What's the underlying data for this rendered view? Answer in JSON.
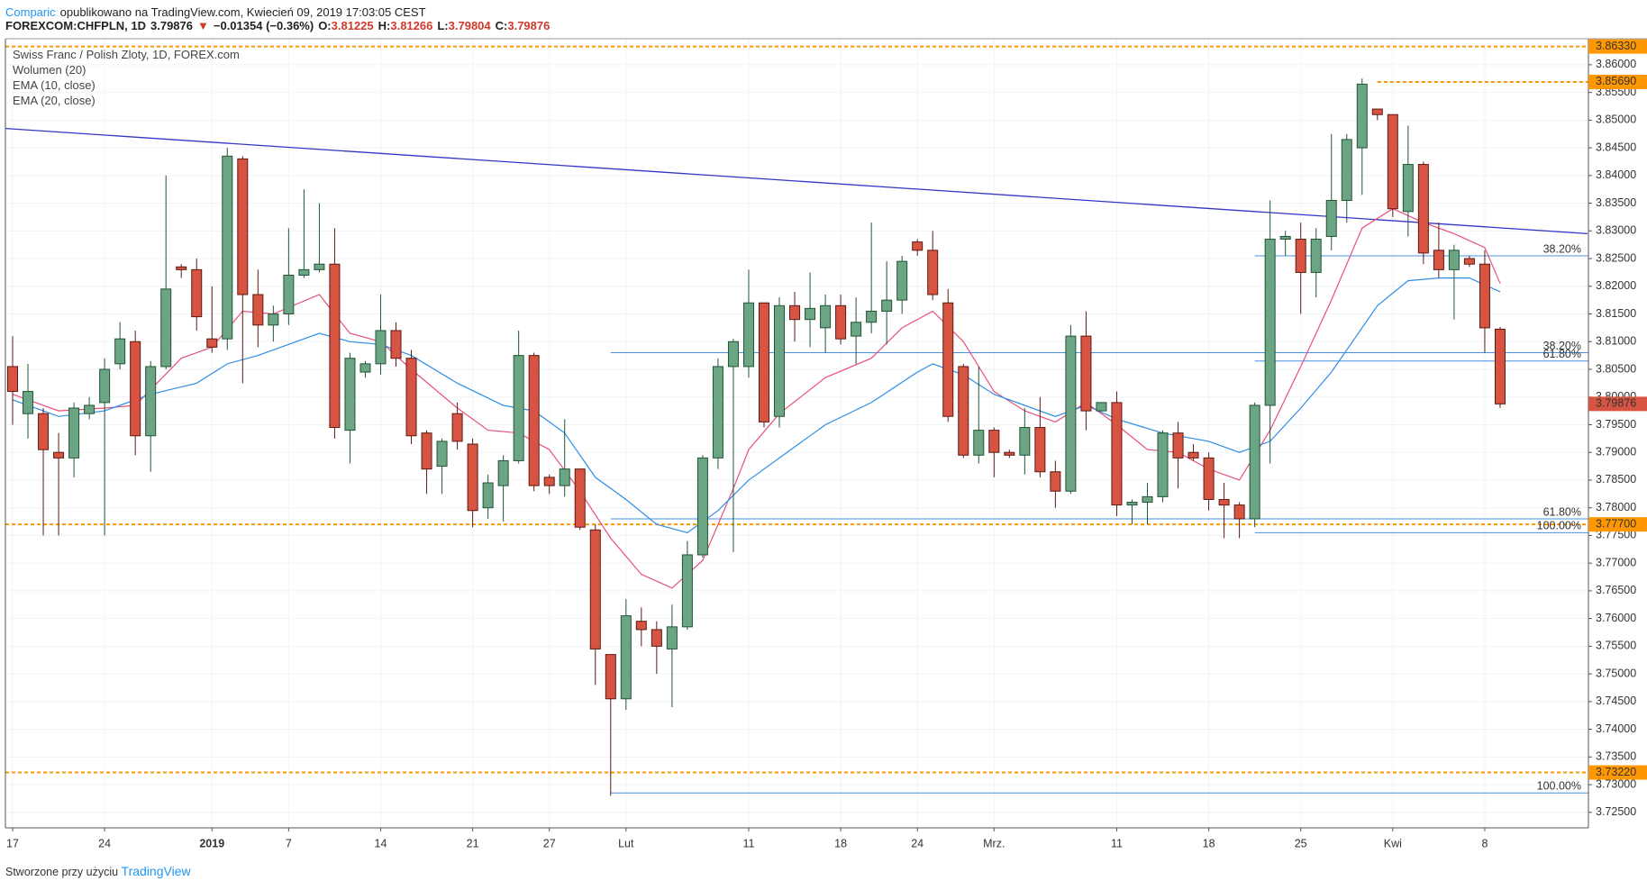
{
  "header": {
    "brand": "Comparic",
    "published": "opublikowano na TradingView.com, Kwiecień 09, 2019 17:03:05 CEST",
    "symbol": "FOREXCOM:CHFPLN, 1D",
    "last": "3.79876",
    "arrow": "▼",
    "change": "−0.01354 (−0.36%)",
    "ohlc": [
      {
        "k": "O:",
        "v": "3.81225"
      },
      {
        "k": "H:",
        "v": "3.81266"
      },
      {
        "k": "L:",
        "v": "3.79804"
      },
      {
        "k": "C:",
        "v": "3.79876"
      }
    ]
  },
  "legend": [
    "Swiss Franc / Polish Zloty, 1D, FOREX.com",
    "Wolumen (20)",
    "EMA (10, close)",
    "EMA (20, close)"
  ],
  "footer": {
    "text": "Stworzone przy użyciu",
    "brand": "TradingView"
  },
  "chart_data": {
    "type": "candlestick",
    "up_color": "#6ba583",
    "down_color": "#d75442",
    "xlim": [
      -0.47,
      102.76
    ],
    "ylim": [
      3.7222,
      3.8647
    ],
    "open": [
      3.8055,
      3.797,
      3.797,
      3.79,
      3.789,
      3.797,
      3.799,
      3.806,
      3.81,
      3.793,
      3.8055,
      3.8235,
      3.823,
      3.8105,
      3.8105,
      3.843,
      3.8185,
      3.813,
      3.815,
      3.822,
      3.823,
      3.824,
      3.794,
      3.8045,
      3.806,
      3.812,
      3.807,
      3.7935,
      3.7875,
      3.797,
      3.7915,
      3.78,
      3.784,
      3.7885,
      3.8075,
      3.7855,
      3.784,
      3.787,
      3.776,
      3.7535,
      3.7455,
      3.7595,
      3.758,
      3.7545,
      3.7585,
      3.7715,
      3.789,
      3.8055,
      3.8055,
      3.817,
      3.7965,
      3.8165,
      3.814,
      3.8125,
      3.8165,
      3.811,
      3.8135,
      3.8155,
      3.8175,
      3.828,
      3.8265,
      3.817,
      3.8055,
      3.7895,
      3.794,
      3.79,
      3.7895,
      3.7945,
      3.7865,
      3.783,
      3.811,
      3.7975,
      3.799,
      3.7805,
      3.781,
      3.782,
      3.7935,
      3.79,
      3.789,
      3.7815,
      3.7805,
      3.778,
      3.7985,
      3.8285,
      3.8285,
      3.8225,
      3.829,
      3.8355,
      3.845,
      3.852,
      3.851,
      3.8335,
      3.842,
      3.8265,
      3.823,
      3.825,
      3.824,
      3.81225
    ],
    "high": [
      3.811,
      3.806,
      3.798,
      3.7935,
      3.799,
      3.8,
      3.807,
      3.8135,
      3.812,
      3.8065,
      3.84,
      3.824,
      3.825,
      3.82,
      3.845,
      3.8435,
      3.823,
      3.8165,
      3.8305,
      3.8375,
      3.835,
      3.8305,
      3.808,
      3.8065,
      3.8185,
      3.8135,
      3.8085,
      3.794,
      3.7925,
      3.799,
      3.7925,
      3.786,
      3.7895,
      3.812,
      3.808,
      3.786,
      3.796,
      3.787,
      3.777,
      3.7535,
      3.7635,
      3.762,
      3.7595,
      3.7625,
      3.774,
      3.7895,
      3.807,
      3.8105,
      3.823,
      3.817,
      3.818,
      3.819,
      3.8225,
      3.8185,
      3.8185,
      3.818,
      3.8315,
      3.8245,
      3.8255,
      3.8285,
      3.83,
      3.8195,
      3.806,
      3.8055,
      3.7945,
      3.7905,
      3.798,
      3.8,
      3.7885,
      3.813,
      3.8155,
      3.799,
      3.801,
      3.7815,
      3.7845,
      3.794,
      3.7955,
      3.7915,
      3.79,
      3.7845,
      3.781,
      3.799,
      3.8355,
      3.83,
      3.8315,
      3.8305,
      3.8475,
      3.8475,
      3.8575,
      3.852,
      3.851,
      3.849,
      3.8425,
      3.8315,
      3.8275,
      3.8255,
      3.8265,
      3.81266
    ],
    "low": [
      3.795,
      3.7925,
      3.775,
      3.775,
      3.7855,
      3.796,
      3.775,
      3.805,
      3.7895,
      3.7865,
      3.805,
      3.8215,
      3.812,
      3.808,
      3.8085,
      3.8025,
      3.809,
      3.81,
      3.813,
      3.8215,
      3.8225,
      3.7925,
      3.788,
      3.8035,
      3.804,
      3.8055,
      3.7915,
      3.7825,
      3.7825,
      3.7905,
      3.7765,
      3.778,
      3.7775,
      3.788,
      3.783,
      3.7825,
      3.782,
      3.776,
      3.748,
      3.728,
      3.7435,
      3.755,
      3.75,
      3.744,
      3.758,
      3.771,
      3.787,
      3.772,
      3.8035,
      3.7945,
      3.7945,
      3.81,
      3.809,
      3.808,
      3.8095,
      3.806,
      3.8115,
      3.8095,
      3.815,
      3.8255,
      3.8175,
      3.7955,
      3.789,
      3.788,
      3.7855,
      3.789,
      3.786,
      3.7855,
      3.78,
      3.7825,
      3.794,
      3.7975,
      3.7785,
      3.777,
      3.777,
      3.781,
      3.7835,
      3.7885,
      3.7795,
      3.7745,
      3.7745,
      3.7765,
      3.788,
      3.8255,
      3.815,
      3.818,
      3.8265,
      3.8315,
      3.8365,
      3.85,
      3.8325,
      3.829,
      3.824,
      3.8215,
      3.814,
      3.8235,
      3.808,
      3.79804
    ],
    "close": [
      3.801,
      3.801,
      3.7905,
      3.789,
      3.798,
      3.7985,
      3.805,
      3.8105,
      3.793,
      3.8055,
      3.8195,
      3.823,
      3.8145,
      3.809,
      3.8435,
      3.8185,
      3.813,
      3.815,
      3.822,
      3.823,
      3.824,
      3.7945,
      3.807,
      3.806,
      3.812,
      3.807,
      3.793,
      3.787,
      3.792,
      3.792,
      3.7795,
      3.7845,
      3.7885,
      3.8075,
      3.784,
      3.784,
      3.787,
      3.7765,
      3.7545,
      3.7455,
      3.7605,
      3.758,
      3.755,
      3.7585,
      3.7715,
      3.789,
      3.8055,
      3.81,
      3.817,
      3.7955,
      3.8165,
      3.814,
      3.816,
      3.8165,
      3.8105,
      3.8135,
      3.8155,
      3.8175,
      3.8245,
      3.8265,
      3.8185,
      3.7965,
      3.7895,
      3.794,
      3.79,
      3.7895,
      3.7945,
      3.7865,
      3.783,
      3.811,
      3.7975,
      3.799,
      3.7805,
      3.781,
      3.782,
      3.7935,
      3.789,
      3.789,
      3.7815,
      3.7805,
      3.778,
      3.7985,
      3.8285,
      3.829,
      3.8225,
      3.8285,
      3.8355,
      3.8465,
      3.8565,
      3.851,
      3.834,
      3.842,
      3.826,
      3.823,
      3.8265,
      3.824,
      3.8125,
      3.79876
    ],
    "series": [
      {
        "name": "EMA (10, close)",
        "color": "#e8507a",
        "x": [
          0,
          3,
          6,
          8,
          11,
          13,
          15,
          17,
          20,
          22,
          24,
          26,
          29,
          31,
          33,
          35,
          37,
          39,
          41,
          43,
          45,
          47,
          48,
          50,
          53,
          56,
          58,
          60,
          62,
          64,
          66,
          68,
          70,
          72,
          74,
          76,
          78,
          80,
          82,
          84,
          86,
          88,
          90,
          92,
          94,
          96,
          97
        ],
        "values": [
          3.8005,
          3.7975,
          3.798,
          3.7985,
          3.807,
          3.809,
          3.8155,
          3.815,
          3.8185,
          3.8115,
          3.81,
          3.805,
          3.798,
          3.794,
          3.7935,
          3.7905,
          3.783,
          3.7745,
          3.768,
          3.7655,
          3.7705,
          3.7835,
          3.7905,
          3.797,
          3.8035,
          3.807,
          3.8125,
          3.8155,
          3.81,
          3.801,
          3.7975,
          3.7955,
          3.799,
          3.795,
          3.7905,
          3.79,
          3.787,
          3.785,
          3.794,
          3.8055,
          3.8175,
          3.8305,
          3.834,
          3.8315,
          3.8295,
          3.827,
          3.8205
        ]
      },
      {
        "name": "EMA (20, close)",
        "color": "#2e8ee6",
        "x": [
          0,
          3,
          6,
          9,
          12,
          14,
          16,
          18,
          20,
          22,
          24,
          26,
          29,
          32,
          34,
          36,
          38,
          40,
          42,
          44,
          46,
          48,
          50,
          53,
          56,
          59,
          60,
          62,
          64,
          66,
          68,
          70,
          72,
          75,
          78,
          80,
          82,
          84,
          86,
          89,
          91,
          93,
          95,
          97
        ],
        "values": [
          3.7995,
          3.7965,
          3.7975,
          3.8005,
          3.8025,
          3.806,
          3.8075,
          3.8095,
          3.8115,
          3.81,
          3.8095,
          3.8075,
          3.8025,
          3.7985,
          3.7975,
          3.7935,
          3.7855,
          3.7815,
          3.777,
          3.7755,
          3.7795,
          3.785,
          3.789,
          3.795,
          3.799,
          3.8045,
          3.806,
          3.804,
          3.8005,
          3.7985,
          3.7965,
          3.7985,
          3.796,
          3.7935,
          3.792,
          3.79,
          3.792,
          3.798,
          3.8045,
          3.8165,
          3.821,
          3.8215,
          3.8215,
          3.819
        ]
      }
    ],
    "trendline": {
      "color": "#3434c8",
      "x": [
        -0.5,
        102.7
      ],
      "values": [
        3.8485,
        3.8295
      ]
    },
    "price_lines": [
      {
        "value": 3.8633,
        "label": "3.86330"
      },
      {
        "value": 3.8569,
        "label": "3.85690",
        "from": 89
      },
      {
        "value": 3.777,
        "label": "3.77700"
      },
      {
        "value": 3.7322,
        "label": "3.73220"
      }
    ],
    "last_price": {
      "value": 3.79876,
      "label": "3.79876"
    },
    "fib_levels": [
      {
        "label": "38.20%",
        "value": 3.8255,
        "from": 81
      },
      {
        "label": "61.80%",
        "value": 3.8065,
        "from": 81
      },
      {
        "label": "100.00%",
        "value": 3.7755,
        "from": 81
      },
      {
        "label": "38.20%",
        "value": 3.808,
        "from": 39
      },
      {
        "label": "61.80%",
        "value": 3.778,
        "from": 39
      },
      {
        "label": "100.00%",
        "value": 3.7285,
        "from": 39
      }
    ],
    "yticks": [
      {
        "value": 3.725,
        "label": "3.72500"
      },
      {
        "value": 3.73,
        "label": "3.73000"
      },
      {
        "value": 3.735,
        "label": "3.73500"
      },
      {
        "value": 3.74,
        "label": "3.74000"
      },
      {
        "value": 3.745,
        "label": "3.74500"
      },
      {
        "value": 3.75,
        "label": "3.75000"
      },
      {
        "value": 3.755,
        "label": "3.75500"
      },
      {
        "value": 3.76,
        "label": "3.76000"
      },
      {
        "value": 3.765,
        "label": "3.76500"
      },
      {
        "value": 3.77,
        "label": "3.77000"
      },
      {
        "value": 3.775,
        "label": "3.77500"
      },
      {
        "value": 3.78,
        "label": "3.78000"
      },
      {
        "value": 3.785,
        "label": "3.78500"
      },
      {
        "value": 3.79,
        "label": "3.79000"
      },
      {
        "value": 3.795,
        "label": "3.79500"
      },
      {
        "value": 3.8,
        "label": "3.80000"
      },
      {
        "value": 3.805,
        "label": "3.80500"
      },
      {
        "value": 3.81,
        "label": "3.81000"
      },
      {
        "value": 3.815,
        "label": "3.81500"
      },
      {
        "value": 3.82,
        "label": "3.82000"
      },
      {
        "value": 3.825,
        "label": "3.82500"
      },
      {
        "value": 3.83,
        "label": "3.83000"
      },
      {
        "value": 3.835,
        "label": "3.83500"
      },
      {
        "value": 3.84,
        "label": "3.84000"
      },
      {
        "value": 3.845,
        "label": "3.84500"
      },
      {
        "value": 3.85,
        "label": "3.85000"
      },
      {
        "value": 3.855,
        "label": "3.85500"
      },
      {
        "value": 3.86,
        "label": "3.86000"
      }
    ],
    "xticks": [
      {
        "value": 0,
        "label": "17"
      },
      {
        "value": 6,
        "label": "24"
      },
      {
        "value": 13,
        "label": "2019"
      },
      {
        "value": 18,
        "label": "7"
      },
      {
        "value": 24,
        "label": "14"
      },
      {
        "value": 30,
        "label": "21"
      },
      {
        "value": 35,
        "label": "27"
      },
      {
        "value": 40,
        "label": "Lut"
      },
      {
        "value": 48,
        "label": "11"
      },
      {
        "value": 54,
        "label": "18"
      },
      {
        "value": 59,
        "label": "24"
      },
      {
        "value": 64,
        "label": "Mrz."
      },
      {
        "value": 72,
        "label": "11"
      },
      {
        "value": 78,
        "label": "18"
      },
      {
        "value": 84,
        "label": "25"
      },
      {
        "value": 90,
        "label": "Kwi"
      },
      {
        "value": 96,
        "label": "8"
      }
    ],
    "grid": true
  }
}
